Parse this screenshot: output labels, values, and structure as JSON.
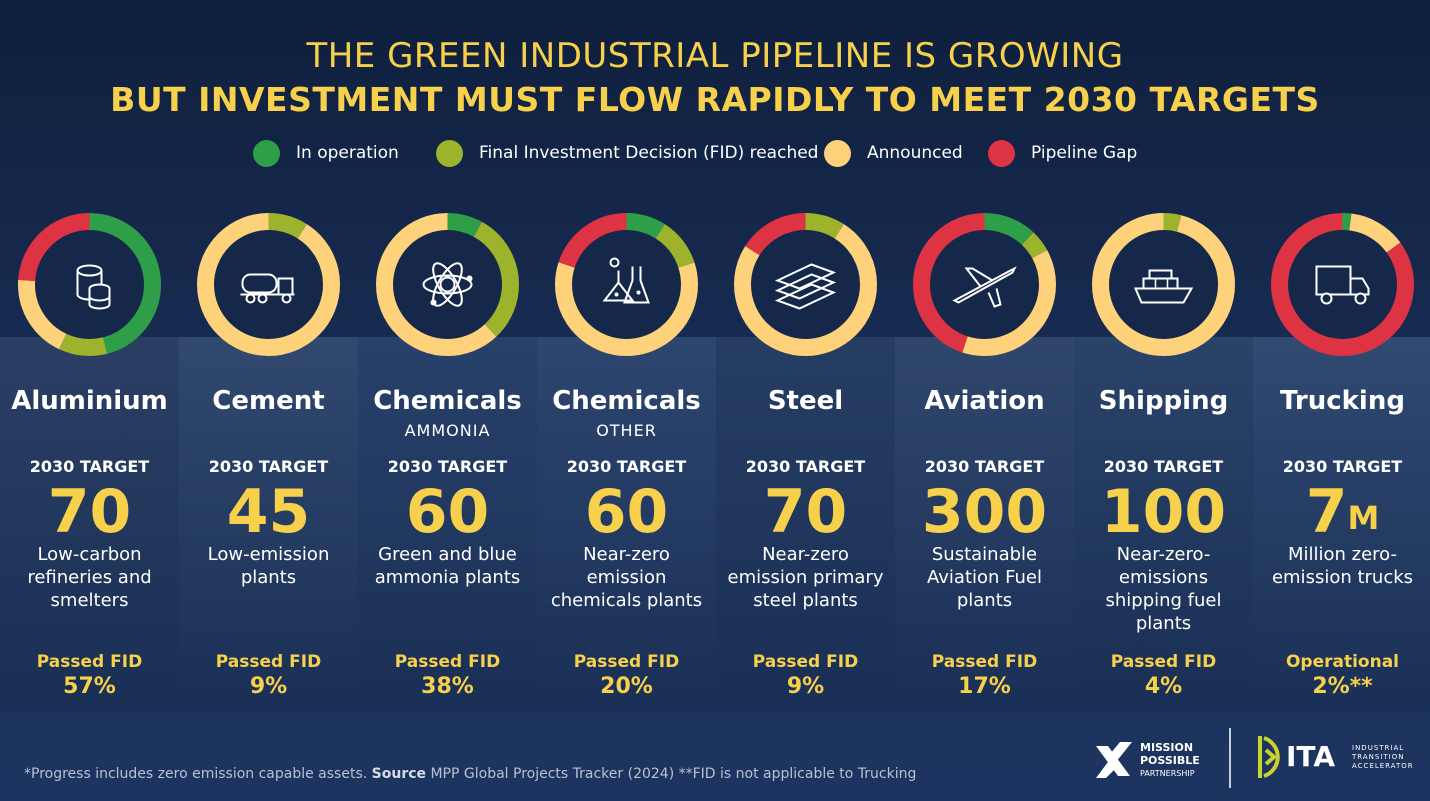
{
  "header": {
    "title_line1": "THE GREEN INDUSTRIAL PIPELINE IS GROWING",
    "title_line2": "BUT INVESTMENT MUST FLOW RAPIDLY TO MEET 2030 TARGETS"
  },
  "legend": [
    {
      "label": "In operation",
      "color": "#2e9e48"
    },
    {
      "label": "Final Investment Decision (FID) reached",
      "color": "#9db32c"
    },
    {
      "label": "Announced",
      "color": "#fdd27b"
    },
    {
      "label": "Pipeline Gap",
      "color": "#dd3343"
    }
  ],
  "chart_data": {
    "type": "pie",
    "variant": "donut",
    "categories": [
      "Aluminium",
      "Cement",
      "Chemicals",
      "Chemicals",
      "Steel",
      "Aviation",
      "Shipping",
      "Trucking"
    ],
    "series_names": [
      "In operation",
      "Final Investment Decision (FID) reached",
      "Announced",
      "Pipeline Gap"
    ],
    "sectors": [
      {
        "name": "Aluminium",
        "subtitle": "",
        "target_label": "2030 TARGET",
        "target": "70",
        "target_suffix": "",
        "description": "Low-carbon refineries and smelters",
        "fid_label": "Passed FID",
        "fid_value": "57%",
        "icon": "aluminium-ingots-icon",
        "segments": {
          "operation": 0.46,
          "fid": 0.11,
          "announced": 0.19,
          "gap": 0.24
        }
      },
      {
        "name": "Cement",
        "subtitle": "",
        "target_label": "2030 TARGET",
        "target": "45",
        "target_suffix": "",
        "description": "Low-emission plants",
        "fid_label": "Passed FID",
        "fid_value": "9%",
        "icon": "cement-mixer-truck-icon",
        "segments": {
          "operation": 0.0,
          "fid": 0.09,
          "announced": 0.91,
          "gap": 0.0
        }
      },
      {
        "name": "Chemicals",
        "subtitle": "AMMONIA",
        "target_label": "2030 TARGET",
        "target": "60",
        "target_suffix": "",
        "description": "Green and blue ammonia plants",
        "fid_label": "Passed FID",
        "fid_value": "38%",
        "icon": "ammonia-molecule-icon",
        "segments": {
          "operation": 0.08,
          "fid": 0.3,
          "announced": 0.62,
          "gap": 0.0
        }
      },
      {
        "name": "Chemicals",
        "subtitle": "OTHER",
        "target_label": "2030 TARGET",
        "target": "60",
        "target_suffix": "",
        "description": "Near-zero emission chemicals plants",
        "fid_label": "Passed FID",
        "fid_value": "20%",
        "icon": "chemistry-flasks-icon",
        "segments": {
          "operation": 0.09,
          "fid": 0.11,
          "announced": 0.6,
          "gap": 0.2
        }
      },
      {
        "name": "Steel",
        "subtitle": "",
        "target_label": "2030 TARGET",
        "target": "70",
        "target_suffix": "",
        "description": "Near-zero emission primary steel plants",
        "fid_label": "Passed FID",
        "fid_value": "9%",
        "icon": "steel-beams-icon",
        "segments": {
          "operation": 0.0,
          "fid": 0.09,
          "announced": 0.75,
          "gap": 0.16
        }
      },
      {
        "name": "Aviation",
        "subtitle": "",
        "target_label": "2030 TARGET",
        "target": "300",
        "target_suffix": "",
        "description": "Sustainable Aviation Fuel plants",
        "fid_label": "Passed FID",
        "fid_value": "17%",
        "icon": "airplane-icon",
        "segments": {
          "operation": 0.12,
          "fid": 0.05,
          "announced": 0.38,
          "gap": 0.45
        }
      },
      {
        "name": "Shipping",
        "subtitle": "",
        "target_label": "2030 TARGET",
        "target": "100",
        "target_suffix": "",
        "description": "Near-zero-emissions shipping fuel plants",
        "fid_label": "Passed FID",
        "fid_value": "4%",
        "icon": "container-ship-icon",
        "segments": {
          "operation": 0.0,
          "fid": 0.04,
          "announced": 0.96,
          "gap": 0.0
        }
      },
      {
        "name": "Trucking",
        "subtitle": "",
        "target_label": "2030 TARGET",
        "target": "7",
        "target_suffix": "M",
        "description": "Million zero-emission trucks",
        "fid_label": "Operational",
        "fid_value": "2%**",
        "icon": "truck-icon",
        "segments": {
          "operation": 0.02,
          "fid": 0.0,
          "announced": 0.13,
          "gap": 0.85
        }
      }
    ]
  },
  "footer": {
    "note_pre": "*Progress includes zero emission capable assets. ",
    "note_source_label": "Source",
    "note_post": " MPP Global Projects Tracker (2024) **FID is not applicable to Trucking",
    "logo_mpp_line1": "MISSION",
    "logo_mpp_line2": "POSSIBLE",
    "logo_mpp_line3": "PARTNERSHIP",
    "logo_ita": "ITA",
    "logo_ita_sub1": "INDUSTRIAL",
    "logo_ita_sub2": "TRANSITION",
    "logo_ita_sub3": "ACCELERATOR"
  },
  "colors": {
    "operation": "#2e9e48",
    "fid": "#9db32c",
    "announced": "#fdd27b",
    "gap": "#dd3343",
    "title": "#f7d04c"
  }
}
